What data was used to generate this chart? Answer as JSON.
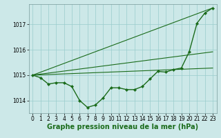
{
  "series_main": {
    "x": [
      0,
      1,
      2,
      3,
      4,
      5,
      6,
      7,
      8,
      9,
      10,
      11,
      12,
      13,
      14,
      15,
      16,
      17,
      18,
      19,
      20,
      21,
      22,
      23
    ],
    "y": [
      1015.0,
      1014.9,
      1014.65,
      1014.7,
      1014.7,
      1014.55,
      1014.0,
      1013.73,
      1013.82,
      1014.1,
      1014.5,
      1014.5,
      1014.43,
      1014.43,
      1014.55,
      1014.85,
      1015.15,
      1015.12,
      1015.22,
      1015.28,
      1015.92,
      1017.05,
      1017.45,
      1017.65
    ],
    "color": "#1a6b1a",
    "linewidth": 1.0,
    "markersize": 2.2
  },
  "straight_lines": [
    {
      "x": [
        0,
        23
      ],
      "y": [
        1015.0,
        1017.65
      ]
    },
    {
      "x": [
        0,
        23
      ],
      "y": [
        1015.0,
        1015.28
      ]
    },
    {
      "x": [
        0,
        23
      ],
      "y": [
        1015.0,
        1015.92
      ]
    }
  ],
  "xlabel": "Graphe pression niveau de la mer (hPa)",
  "xlim": [
    -0.5,
    23.5
  ],
  "ylim": [
    1013.5,
    1017.8
  ],
  "yticks": [
    1014,
    1015,
    1016,
    1017
  ],
  "xticks": [
    0,
    1,
    2,
    3,
    4,
    5,
    6,
    7,
    8,
    9,
    10,
    11,
    12,
    13,
    14,
    15,
    16,
    17,
    18,
    19,
    20,
    21,
    22,
    23
  ],
  "bg_color": "#cce8e8",
  "grid_color": "#99cccc",
  "line_color": "#1a6b1a",
  "xlabel_fontsize": 7.0,
  "tick_fontsize": 5.5
}
